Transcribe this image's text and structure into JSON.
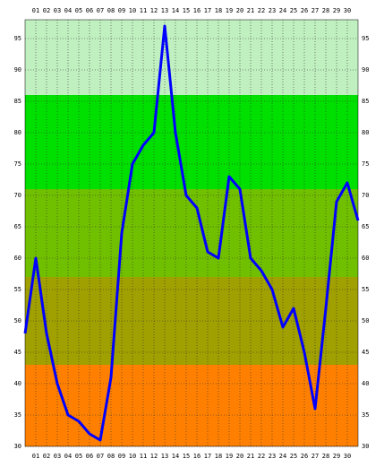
{
  "chart_data": {
    "type": "line",
    "x": [
      0,
      1,
      2,
      3,
      4,
      5,
      6,
      7,
      8,
      9,
      10,
      11,
      12,
      13,
      14,
      15,
      16,
      17,
      18,
      19,
      20,
      21,
      22,
      23,
      24,
      25,
      26,
      27,
      28,
      29,
      30,
      31
    ],
    "series": [
      {
        "color": "#0000ff",
        "values": [
          48,
          60,
          48,
          40,
          35,
          34,
          32,
          31,
          41,
          64,
          75,
          78,
          80,
          97,
          80,
          70,
          68,
          61,
          60,
          73,
          71,
          60,
          58,
          55,
          49,
          52,
          45,
          36,
          52,
          69,
          72,
          66
        ]
      }
    ],
    "xlim": [
      0,
      31
    ],
    "xticks": [
      {
        "value": 1,
        "label": "01"
      },
      {
        "value": 2,
        "label": "02"
      },
      {
        "value": 3,
        "label": "03"
      },
      {
        "value": 4,
        "label": "04"
      },
      {
        "value": 5,
        "label": "05"
      },
      {
        "value": 6,
        "label": "06"
      },
      {
        "value": 7,
        "label": "07"
      },
      {
        "value": 8,
        "label": "08"
      },
      {
        "value": 9,
        "label": "09"
      },
      10,
      11,
      12,
      13,
      14,
      15,
      16,
      17,
      18,
      19,
      20,
      21,
      22,
      23,
      24,
      25,
      26,
      27,
      28,
      29,
      30
    ],
    "ylim": [
      30,
      98
    ],
    "yticks": [
      30,
      35,
      40,
      45,
      50,
      55,
      60,
      65,
      70,
      75,
      80,
      85,
      90,
      95
    ],
    "bands": [
      {
        "from": 30,
        "to": 43,
        "color": "#ff8000"
      },
      {
        "from": 43,
        "to": 57,
        "color": "#a0a000"
      },
      {
        "from": 57,
        "to": 71,
        "color": "#70c000"
      },
      {
        "from": 71,
        "to": 86,
        "color": "#00e000"
      },
      {
        "from": 86,
        "to": 98,
        "color": "#c0f0c0"
      }
    ],
    "grid": true
  }
}
